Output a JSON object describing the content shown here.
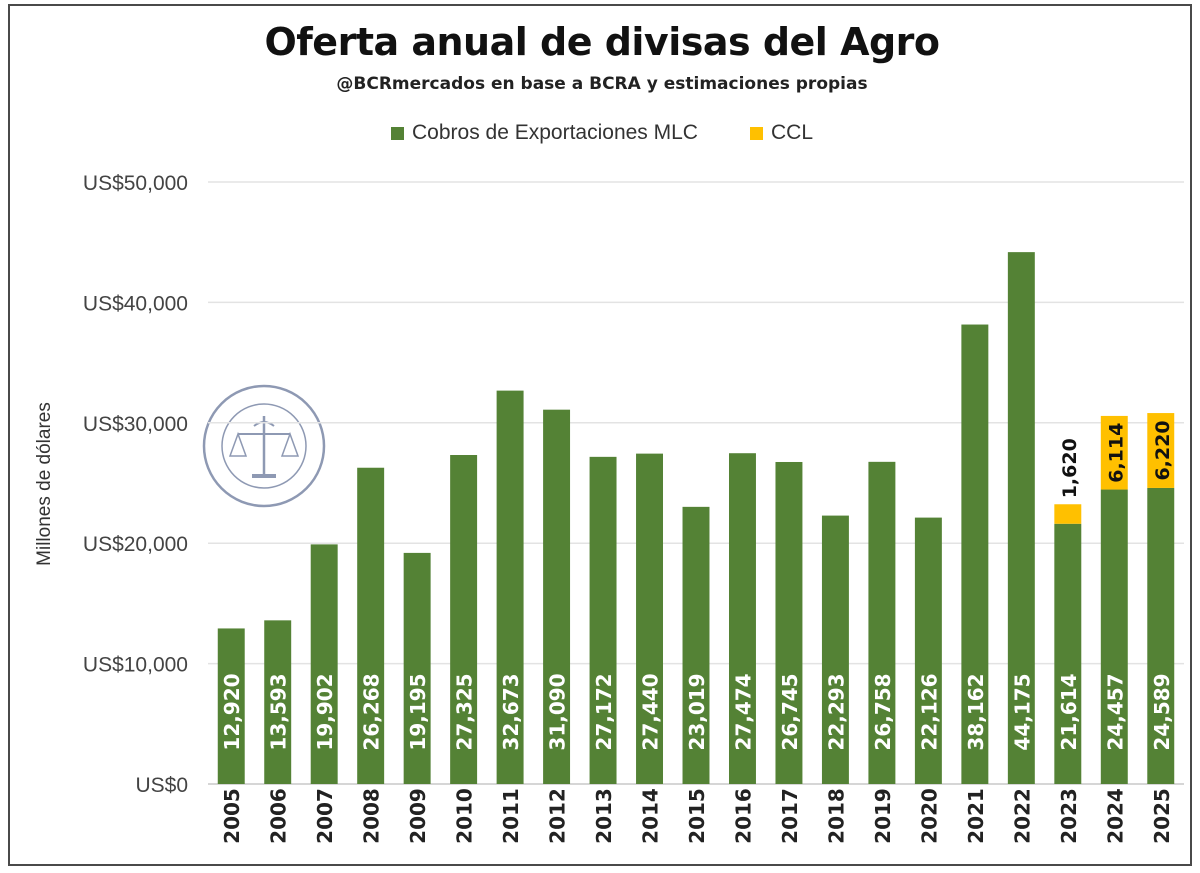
{
  "colors": {
    "mlc": "#548235",
    "ccl": "#FFC000",
    "grid": "#e3e3e3",
    "bar_label_mlc": "#ffffff",
    "bar_label_ccl": "#111111"
  },
  "chart_data": {
    "type": "bar",
    "stacked": true,
    "title": "Oferta anual de divisas del Agro",
    "subtitle": "@BCRmercados en base a BCRA y estimaciones propias",
    "ylabel": "Millones de dólares",
    "xlabel": "",
    "ylim": [
      0,
      50000
    ],
    "yticks": [
      0,
      10000,
      20000,
      30000,
      40000,
      50000
    ],
    "ytick_labels": [
      "US$0",
      "US$10,000",
      "US$20,000",
      "US$30,000",
      "US$40,000",
      "US$50,000"
    ],
    "grid": true,
    "legend_position": "top",
    "categories": [
      "2005",
      "2006",
      "2007",
      "2008",
      "2009",
      "2010",
      "2011",
      "2012",
      "2013",
      "2014",
      "2015",
      "2016",
      "2017",
      "2018",
      "2019",
      "2020",
      "2021",
      "2022",
      "2023",
      "2024",
      "2025"
    ],
    "series": [
      {
        "name": "Cobros de Exportaciones MLC",
        "values": [
          12920,
          13593,
          19902,
          26268,
          19195,
          27325,
          32673,
          31090,
          27172,
          27440,
          23019,
          27474,
          26745,
          22293,
          26758,
          22126,
          38162,
          44175,
          21614,
          24457,
          24589
        ],
        "labels": [
          "12,920",
          "13,593",
          "19,902",
          "26,268",
          "19,195",
          "27,325",
          "32,673",
          "31,090",
          "27,172",
          "27,440",
          "23,019",
          "27,474",
          "26,745",
          "22,293",
          "26,758",
          "22,126",
          "38,162",
          "44,175",
          "21,614",
          "24,457",
          "24,589"
        ]
      },
      {
        "name": "CCL",
        "values": [
          0,
          0,
          0,
          0,
          0,
          0,
          0,
          0,
          0,
          0,
          0,
          0,
          0,
          0,
          0,
          0,
          0,
          0,
          1620,
          6114,
          6220
        ],
        "labels": [
          "",
          "",
          "",
          "",
          "",
          "",
          "",
          "",
          "",
          "",
          "",
          "",
          "",
          "",
          "",
          "",
          "",
          "",
          "1,620",
          "6,114",
          "6,220"
        ]
      }
    ]
  }
}
